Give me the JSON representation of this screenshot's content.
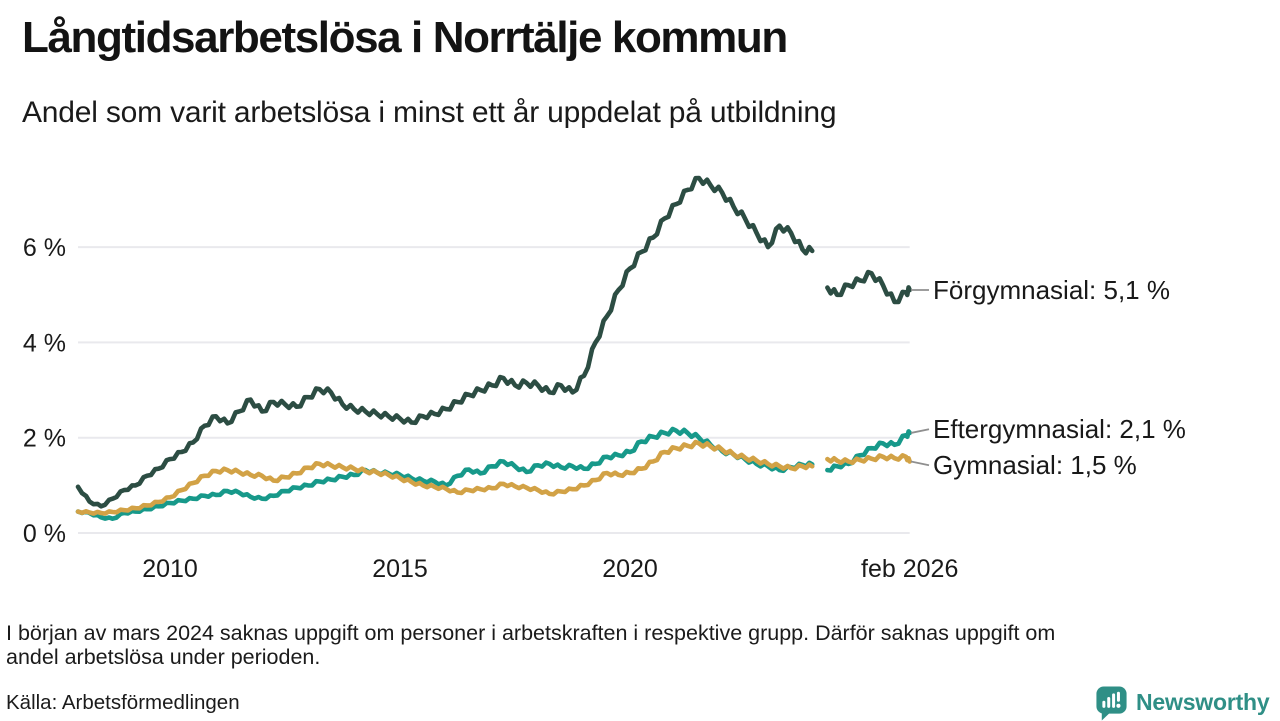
{
  "header": {
    "title": "Långtidsarbetslösa i Norrtälje kommun",
    "subtitle": "Andel som varit arbetslösa i minst ett år uppdelat på utbildning"
  },
  "chart_data": {
    "type": "line",
    "title": "Långtidsarbetslösa i Norrtälje kommun",
    "subtitle": "Andel som varit arbetslösa i minst ett år uppdelat på utbildning",
    "x_unit": "decimal year, monthly series jan 2008 – feb 2026",
    "y_unit": "percent",
    "grid": "horizontal",
    "legend": "end-of-line labels at right",
    "xlim": [
      2008.0,
      2026.08
    ],
    "ylim": [
      0,
      7.9
    ],
    "gap": {
      "from": 2024.0,
      "to": 2024.25,
      "reason": "uppgift saknas i början av mars 2024"
    },
    "x_ticks": [
      {
        "v": 2010,
        "label": "2010"
      },
      {
        "v": 2015,
        "label": "2015"
      },
      {
        "v": 2020,
        "label": "2020"
      },
      {
        "v": 2026.08,
        "label": "feb 2026"
      }
    ],
    "y_ticks": [
      {
        "v": 0,
        "label": "0 %"
      },
      {
        "v": 2,
        "label": "2 %"
      },
      {
        "v": 4,
        "label": "4 %"
      },
      {
        "v": 6,
        "label": "6 %"
      }
    ],
    "x": [
      2008,
      2008.25,
      2008.5,
      2008.75,
      2009,
      2009.25,
      2009.5,
      2009.75,
      2010,
      2010.25,
      2010.5,
      2010.75,
      2011,
      2011.25,
      2011.5,
      2011.75,
      2012,
      2012.25,
      2012.5,
      2012.75,
      2013,
      2013.25,
      2013.5,
      2013.75,
      2014,
      2014.25,
      2014.5,
      2014.75,
      2015,
      2015.25,
      2015.5,
      2015.75,
      2016,
      2016.25,
      2016.5,
      2016.75,
      2017,
      2017.25,
      2017.5,
      2017.75,
      2018,
      2018.25,
      2018.5,
      2018.75,
      2019,
      2019.25,
      2019.5,
      2019.75,
      2020,
      2020.25,
      2020.5,
      2020.75,
      2021,
      2021.25,
      2021.5,
      2021.75,
      2022,
      2022.25,
      2022.5,
      2022.75,
      2023,
      2023.25,
      2023.5,
      2023.75,
      2023.96,
      2024.1,
      2024.29,
      2024.5,
      2024.75,
      2025,
      2025.25,
      2025.5,
      2025.75,
      2026,
      2026.08
    ],
    "series": [
      {
        "name": "Förgymnasial",
        "end_label": "Förgymnasial: 5,1 %",
        "end_value": 5.1,
        "color": "#2c4d43",
        "values": [
          0.97,
          0.66,
          0.56,
          0.72,
          0.9,
          1.0,
          1.2,
          1.35,
          1.55,
          1.7,
          1.9,
          2.25,
          2.45,
          2.3,
          2.55,
          2.8,
          2.55,
          2.75,
          2.7,
          2.65,
          2.85,
          3.02,
          2.95,
          2.7,
          2.6,
          2.55,
          2.5,
          2.45,
          2.4,
          2.32,
          2.45,
          2.5,
          2.6,
          2.75,
          2.9,
          3.0,
          3.1,
          3.25,
          3.1,
          3.15,
          3.1,
          2.95,
          3.1,
          2.95,
          3.3,
          4.0,
          4.55,
          5.1,
          5.55,
          5.9,
          6.2,
          6.6,
          6.9,
          7.2,
          7.45,
          7.3,
          7.15,
          6.85,
          6.6,
          6.3,
          6.0,
          6.45,
          6.3,
          5.95,
          5.92,
          null,
          5.15,
          5.0,
          5.2,
          5.3,
          5.45,
          5.2,
          4.85,
          5.05,
          5.1
        ]
      },
      {
        "name": "Eftergymnasial",
        "end_label": "Eftergymnasial: 2,1 %",
        "end_value": 2.1,
        "color": "#17998a",
        "values": [
          0.45,
          0.42,
          0.33,
          0.3,
          0.42,
          0.45,
          0.5,
          0.56,
          0.63,
          0.68,
          0.72,
          0.78,
          0.8,
          0.88,
          0.85,
          0.76,
          0.72,
          0.78,
          0.88,
          0.95,
          1.0,
          1.08,
          1.12,
          1.18,
          1.22,
          1.32,
          1.27,
          1.25,
          1.22,
          1.15,
          1.1,
          1.08,
          1.0,
          1.2,
          1.33,
          1.25,
          1.4,
          1.5,
          1.4,
          1.28,
          1.42,
          1.45,
          1.38,
          1.4,
          1.35,
          1.45,
          1.6,
          1.63,
          1.7,
          1.92,
          2.02,
          2.1,
          2.15,
          2.1,
          2.0,
          1.85,
          1.72,
          1.65,
          1.55,
          1.45,
          1.4,
          1.32,
          1.38,
          1.43,
          1.44,
          null,
          1.32,
          1.4,
          1.45,
          1.63,
          1.78,
          1.88,
          1.85,
          2.05,
          2.1
        ]
      },
      {
        "name": "Gymnasial",
        "end_label": "Gymnasial: 1,5 %",
        "end_value": 1.5,
        "color": "#d2a246",
        "values": [
          0.45,
          0.43,
          0.42,
          0.44,
          0.48,
          0.52,
          0.58,
          0.65,
          0.75,
          0.9,
          1.05,
          1.2,
          1.3,
          1.32,
          1.28,
          1.22,
          1.2,
          1.1,
          1.17,
          1.25,
          1.37,
          1.45,
          1.42,
          1.38,
          1.35,
          1.3,
          1.27,
          1.22,
          1.15,
          1.07,
          1.0,
          0.97,
          0.93,
          0.85,
          0.9,
          0.92,
          0.94,
          1.03,
          0.98,
          0.95,
          0.9,
          0.82,
          0.87,
          0.92,
          1.0,
          1.11,
          1.26,
          1.22,
          1.26,
          1.35,
          1.5,
          1.7,
          1.78,
          1.83,
          1.88,
          1.82,
          1.75,
          1.65,
          1.58,
          1.52,
          1.45,
          1.4,
          1.36,
          1.4,
          1.4,
          null,
          1.55,
          1.52,
          1.5,
          1.53,
          1.56,
          1.6,
          1.57,
          1.6,
          1.5
        ]
      }
    ]
  },
  "notes": {
    "footnote_lines": [
      "I början av mars 2024 saknas uppgift om personer i arbetskraften i respektive grupp. Därför saknas uppgift om",
      "andel arbetslösa under perioden."
    ],
    "source": "Källa: Arbetsförmedlingen"
  },
  "branding": {
    "name": "Newsworthy",
    "color": "#2f8f86"
  }
}
